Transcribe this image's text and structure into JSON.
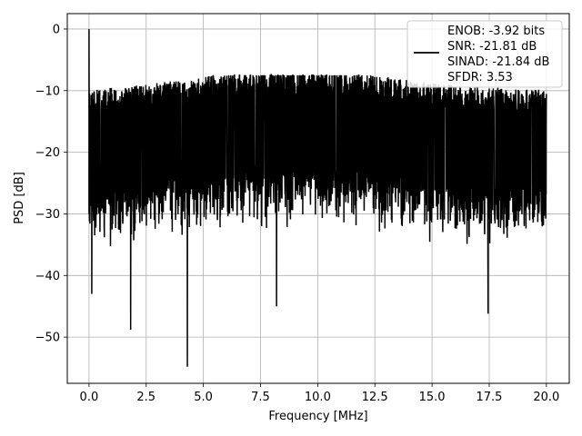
{
  "chart_data": {
    "type": "line",
    "title": "",
    "xlabel": "Frequency [MHz]",
    "ylabel": "PSD [dB]",
    "xlim": [
      -0.95,
      21.0
    ],
    "ylim": [
      -57.5,
      2.5
    ],
    "xticks": [
      0.0,
      2.5,
      5.0,
      7.5,
      10.0,
      12.5,
      15.0,
      17.5,
      20.0
    ],
    "xtick_labels": [
      "0.0",
      "2.5",
      "5.0",
      "7.5",
      "10.0",
      "12.5",
      "15.0",
      "17.5",
      "20.0"
    ],
    "yticks": [
      0,
      -10,
      -20,
      -30,
      -40,
      -50
    ],
    "ytick_labels": [
      "0",
      "−10",
      "−20",
      "−30",
      "−40",
      "−50"
    ],
    "grid": true,
    "line_color": "#000000",
    "legend": {
      "placement": "top-right",
      "entries": [
        "ENOB: -3.92 bits",
        "SNR: -21.81 dB",
        "SINAD: -21.84 dB",
        "SFDR: 3.53"
      ]
    },
    "series": [
      {
        "noise_floor_db": -20,
        "notable_points": [
          {
            "x": 0.0,
            "y": 0.0
          },
          {
            "x": 0.12,
            "y": -43.0
          },
          {
            "x": 1.82,
            "y": -48.8
          },
          {
            "x": 4.3,
            "y": -54.8
          },
          {
            "x": 8.2,
            "y": -45.0
          },
          {
            "x": 17.45,
            "y": -46.2
          }
        ]
      }
    ]
  }
}
